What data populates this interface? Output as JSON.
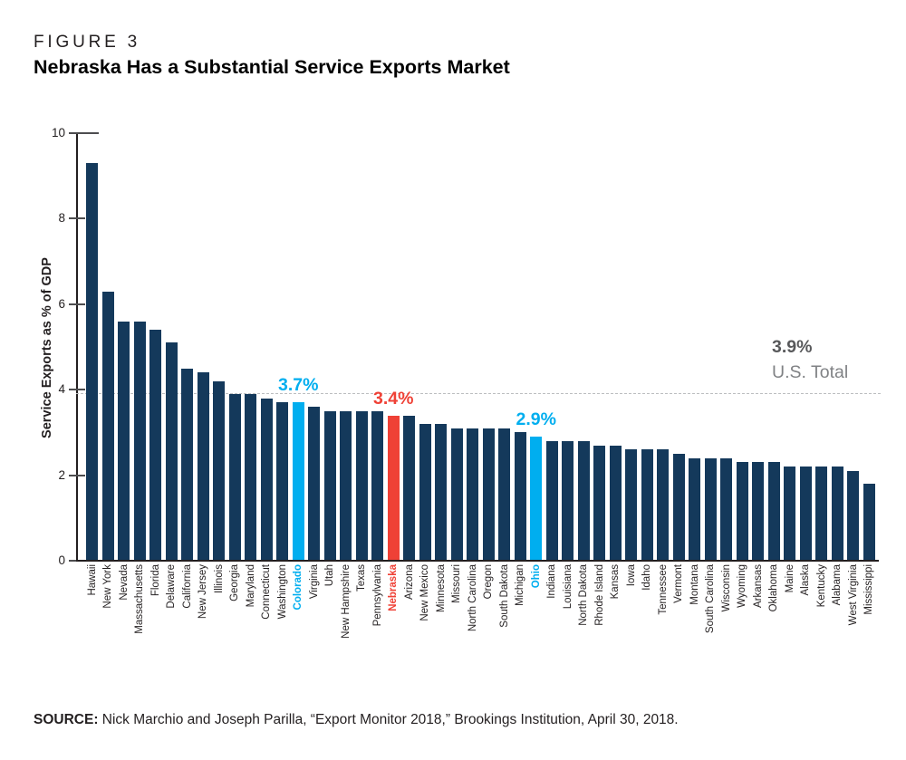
{
  "figure_label": "FIGURE 3",
  "title": "Nebraska Has a Substantial Service Exports Market",
  "source": {
    "prefix": "SOURCE:",
    "text": " Nick Marchio and Joseph Parilla, “Export Monitor 2018,” Brookings Institution, April 30, 2018."
  },
  "colors": {
    "bar_navy": "#14395b",
    "highlight_blue": "#00aeef",
    "highlight_red": "#ef4136",
    "ref_value_gray": "#58595b",
    "ref_text_gray": "#808285",
    "axis_black": "#231f20"
  },
  "chart_data": {
    "type": "bar",
    "title": "Nebraska Has a Substantial Service Exports Market",
    "ylabel": "Service Exports as % of GDP",
    "ylim": [
      0,
      10
    ],
    "yticks": [
      0,
      2,
      4,
      6,
      8,
      10
    ],
    "grid": false,
    "reference_line": {
      "value": 3.9,
      "label_value": "3.9%",
      "label_text": "U.S. Total"
    },
    "categories": [
      "Hawaii",
      "New York",
      "Nevada",
      "Massachusetts",
      "Florida",
      "Delaware",
      "California",
      "New Jersey",
      "Illinois",
      "Georgia",
      "Maryland",
      "Connecticut",
      "Washington",
      "Colorado",
      "Virginia",
      "Utah",
      "New Hampshire",
      "Texas",
      "Pennsylvania",
      "Nebraska",
      "Arizona",
      "New Mexico",
      "Minnesota",
      "Missouri",
      "North Carolina",
      "Oregon",
      "South Dakota",
      "Michigan",
      "Ohio",
      "Indiana",
      "Louisiana",
      "North Dakota",
      "Rhode Island",
      "Kansas",
      "Iowa",
      "Idaho",
      "Tennessee",
      "Vermont",
      "Montana",
      "South Carolina",
      "Wisconsin",
      "Wyoming",
      "Arkansas",
      "Oklahoma",
      "Maine",
      "Alaska",
      "Kentucky",
      "Alabama",
      "West Virginia",
      "Mississippi"
    ],
    "values": [
      9.3,
      6.3,
      5.6,
      5.6,
      5.4,
      5.1,
      4.5,
      4.4,
      4.2,
      3.9,
      3.9,
      3.8,
      3.7,
      3.7,
      3.6,
      3.5,
      3.5,
      3.5,
      3.5,
      3.4,
      3.4,
      3.2,
      3.2,
      3.1,
      3.1,
      3.1,
      3.1,
      3.0,
      2.9,
      2.8,
      2.8,
      2.8,
      2.7,
      2.7,
      2.6,
      2.6,
      2.6,
      2.5,
      2.4,
      2.4,
      2.4,
      2.3,
      2.3,
      2.3,
      2.2,
      2.2,
      2.2,
      2.2,
      2.1,
      1.8
    ],
    "highlights": [
      {
        "state": "Colorado",
        "color_key": "highlight_blue",
        "annotation": "3.7%"
      },
      {
        "state": "Nebraska",
        "color_key": "highlight_red",
        "annotation": "3.4%"
      },
      {
        "state": "Ohio",
        "color_key": "highlight_blue",
        "annotation": "2.9%"
      }
    ]
  }
}
